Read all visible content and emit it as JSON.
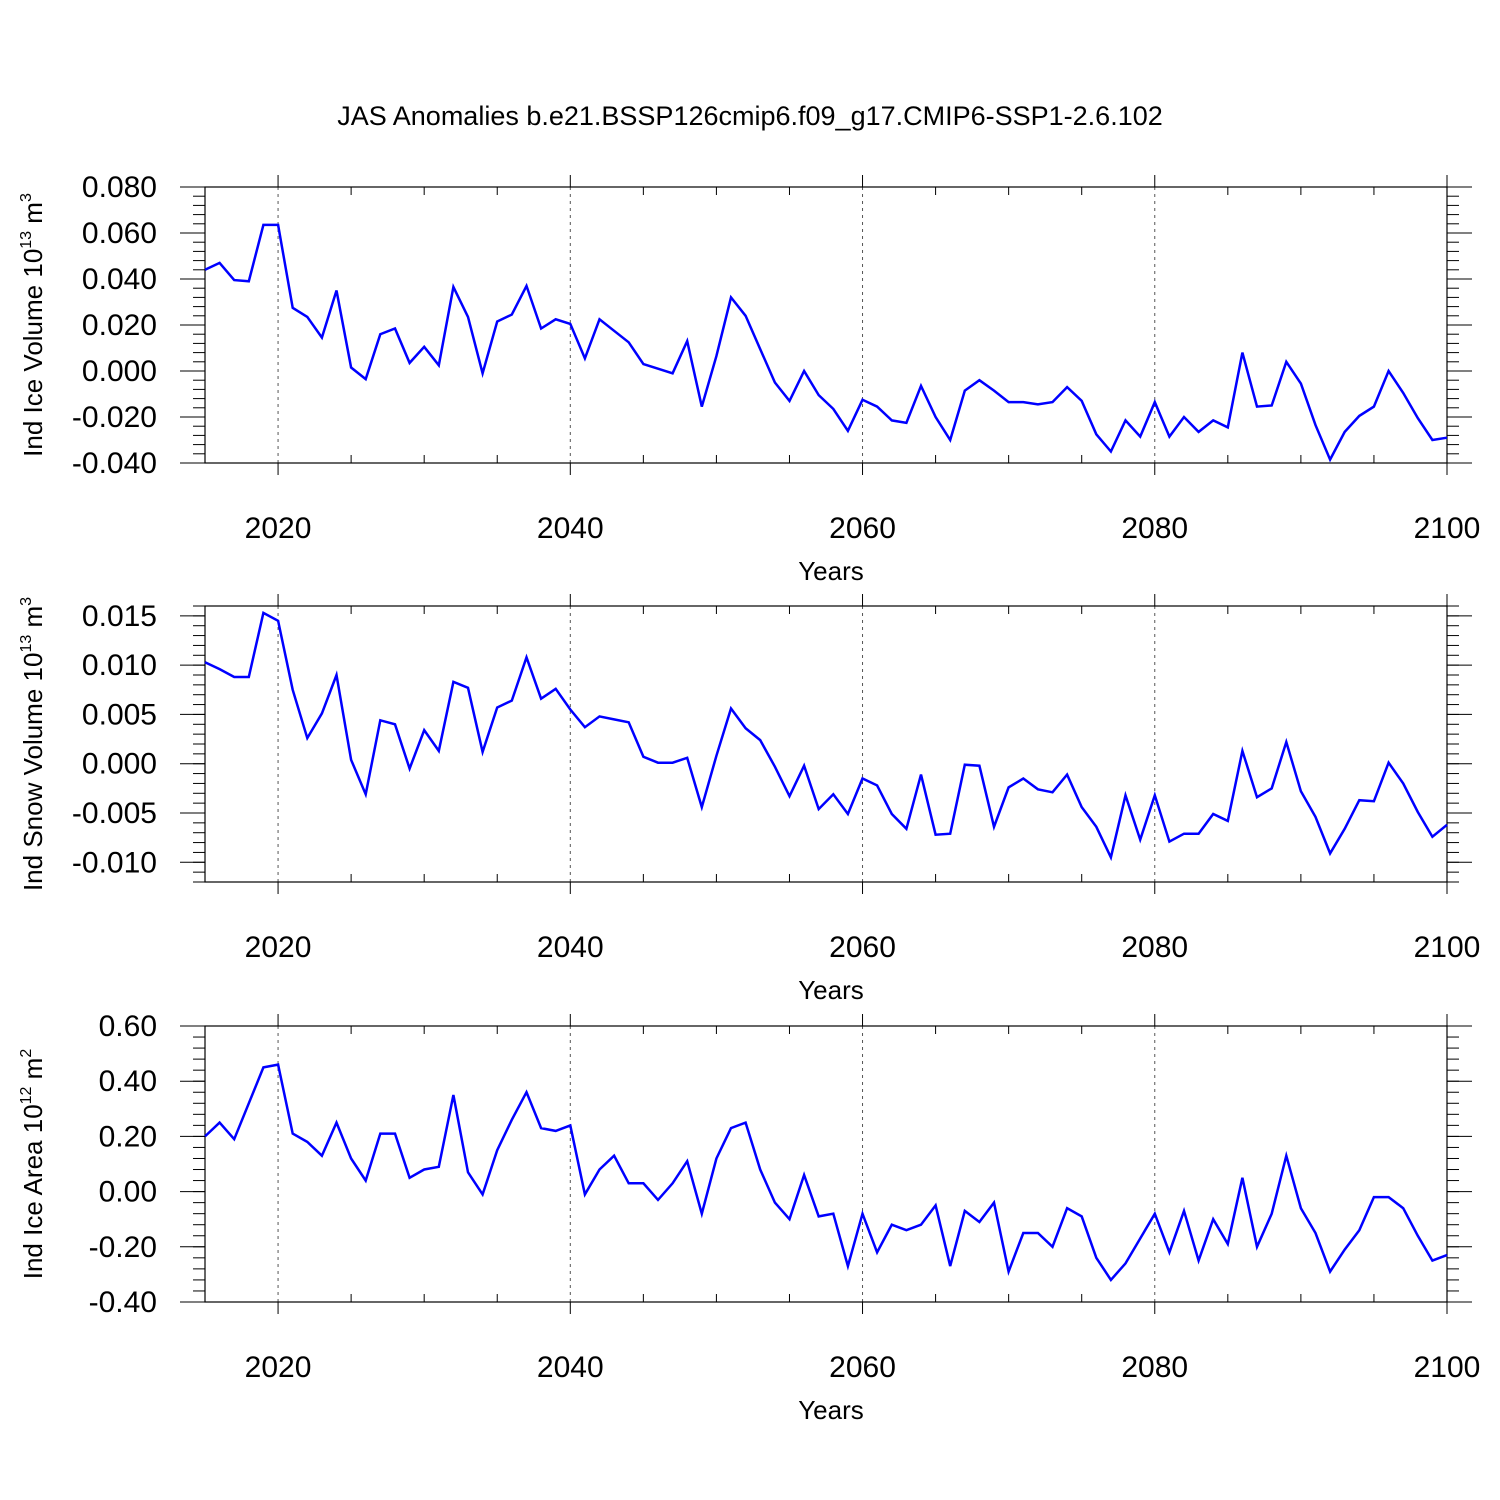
{
  "figure_title": "JAS Anomalies b.e21.BSSP126cmip6.f09_g17.CMIP6-SSP1-2.6.102",
  "colors": {
    "line": "#0000ff",
    "axis": "#000000",
    "grid": "#555555"
  },
  "chart_data": [
    {
      "type": "line",
      "xlabel": "Years",
      "ylabel_parts": {
        "pre": "Ind Ice Volume 10",
        "exp": "13",
        "mid": " m",
        "unit_exp": "3"
      },
      "xlim": [
        2015,
        2100
      ],
      "ylim": [
        -0.04,
        0.08
      ],
      "x_ticks": [
        2020,
        2040,
        2060,
        2080,
        2100
      ],
      "y_ticks": [
        "0.080",
        "0.060",
        "0.040",
        "0.020",
        "0.000",
        "-0.020",
        "-0.040"
      ],
      "y_tick_values": [
        0.08,
        0.06,
        0.04,
        0.02,
        0.0,
        -0.02,
        -0.04
      ],
      "grid": "dashed vertical at 2020, 2040, 2060, 2080",
      "x": [
        2015,
        2016,
        2017,
        2018,
        2019,
        2020,
        2021,
        2022,
        2023,
        2024,
        2025,
        2026,
        2027,
        2028,
        2029,
        2030,
        2031,
        2032,
        2033,
        2034,
        2035,
        2036,
        2037,
        2038,
        2039,
        2040,
        2041,
        2042,
        2043,
        2044,
        2045,
        2046,
        2047,
        2048,
        2049,
        2050,
        2051,
        2052,
        2053,
        2054,
        2055,
        2056,
        2057,
        2058,
        2059,
        2060,
        2061,
        2062,
        2063,
        2064,
        2065,
        2066,
        2067,
        2068,
        2069,
        2070,
        2071,
        2072,
        2073,
        2074,
        2075,
        2076,
        2077,
        2078,
        2079,
        2080,
        2081,
        2082,
        2083,
        2084,
        2085,
        2086,
        2087,
        2088,
        2089,
        2090,
        2091,
        2092,
        2093,
        2094,
        2095,
        2096,
        2097,
        2098,
        2099,
        2100
      ],
      "values": [
        0.044,
        0.047,
        0.0395,
        0.039,
        0.0635,
        0.0635,
        0.0275,
        0.0235,
        0.0145,
        0.035,
        0.0015,
        -0.0035,
        0.016,
        0.0185,
        0.0035,
        0.0105,
        0.0025,
        0.0365,
        0.0235,
        -0.001,
        0.0215,
        0.0245,
        0.037,
        0.0185,
        0.0225,
        0.0205,
        0.0055,
        0.0225,
        0.0175,
        0.0125,
        0.003,
        0.001,
        -0.001,
        0.013,
        -0.0155,
        0.0065,
        0.032,
        0.024,
        0.0095,
        -0.005,
        -0.013,
        0.0,
        -0.0105,
        -0.0165,
        -0.026,
        -0.0125,
        -0.0155,
        -0.0215,
        -0.0225,
        -0.0065,
        -0.02,
        -0.03,
        -0.0085,
        -0.004,
        -0.0085,
        -0.0135,
        -0.0135,
        -0.0145,
        -0.0135,
        -0.007,
        -0.013,
        -0.0275,
        -0.035,
        -0.0215,
        -0.0285,
        -0.0135,
        -0.0285,
        -0.02,
        -0.0265,
        -0.0215,
        -0.0245,
        0.008,
        -0.0155,
        -0.015,
        0.004,
        -0.0055,
        -0.0235,
        -0.0385,
        -0.0265,
        -0.0195,
        -0.0155,
        0.0,
        -0.0095,
        -0.0205,
        -0.03,
        -0.029
      ]
    },
    {
      "type": "line",
      "xlabel": "Years",
      "ylabel_parts": {
        "pre": "Ind Snow Volume 10",
        "exp": "13",
        "mid": " m",
        "unit_exp": "3"
      },
      "xlim": [
        2015,
        2100
      ],
      "ylim": [
        -0.012,
        0.016
      ],
      "x_ticks": [
        2020,
        2040,
        2060,
        2080,
        2100
      ],
      "y_ticks": [
        "0.015",
        "0.010",
        "0.005",
        "0.000",
        "-0.005",
        "-0.010"
      ],
      "y_tick_values": [
        0.015,
        0.01,
        0.005,
        0.0,
        -0.005,
        -0.01
      ],
      "grid": "dashed vertical at 2020, 2040, 2060, 2080",
      "x": [
        2015,
        2016,
        2017,
        2018,
        2019,
        2020,
        2021,
        2022,
        2023,
        2024,
        2025,
        2026,
        2027,
        2028,
        2029,
        2030,
        2031,
        2032,
        2033,
        2034,
        2035,
        2036,
        2037,
        2038,
        2039,
        2040,
        2041,
        2042,
        2043,
        2044,
        2045,
        2046,
        2047,
        2048,
        2049,
        2050,
        2051,
        2052,
        2053,
        2054,
        2055,
        2056,
        2057,
        2058,
        2059,
        2060,
        2061,
        2062,
        2063,
        2064,
        2065,
        2066,
        2067,
        2068,
        2069,
        2070,
        2071,
        2072,
        2073,
        2074,
        2075,
        2076,
        2077,
        2078,
        2079,
        2080,
        2081,
        2082,
        2083,
        2084,
        2085,
        2086,
        2087,
        2088,
        2089,
        2090,
        2091,
        2092,
        2093,
        2094,
        2095,
        2096,
        2097,
        2098,
        2099,
        2100
      ],
      "values": [
        0.0103,
        0.0096,
        0.0088,
        0.0088,
        0.0153,
        0.0145,
        0.0075,
        0.0026,
        0.0051,
        0.009,
        0.0004,
        -0.0031,
        0.0044,
        0.004,
        -0.0005,
        0.0034,
        0.0013,
        0.0083,
        0.0077,
        0.0012,
        0.0057,
        0.0064,
        0.0108,
        0.0066,
        0.0076,
        0.0055,
        0.0037,
        0.0048,
        0.0045,
        0.0042,
        0.0007,
        0.0001,
        0.0001,
        0.0006,
        -0.0044,
        0.0008,
        0.0056,
        0.0036,
        0.0024,
        -0.0003,
        -0.0033,
        -0.0002,
        -0.0046,
        -0.0031,
        -0.0051,
        -0.0015,
        -0.0022,
        -0.0051,
        -0.0066,
        -0.0011,
        -0.0072,
        -0.0071,
        -0.0001,
        -0.0002,
        -0.0064,
        -0.0024,
        -0.0015,
        -0.0026,
        -0.0029,
        -0.0011,
        -0.0044,
        -0.0064,
        -0.0095,
        -0.0032,
        -0.0077,
        -0.0032,
        -0.0079,
        -0.0071,
        -0.0071,
        -0.0051,
        -0.0058,
        0.0013,
        -0.0034,
        -0.0025,
        0.0022,
        -0.0028,
        -0.0054,
        -0.0091,
        -0.0066,
        -0.0037,
        -0.0038,
        0.0001,
        -0.002,
        -0.0049,
        -0.0074,
        -0.0062
      ]
    },
    {
      "type": "line",
      "xlabel": "Years",
      "ylabel_parts": {
        "pre": "Ind Ice Area 10",
        "exp": "12",
        "mid": " m",
        "unit_exp": "2"
      },
      "xlim": [
        2015,
        2100
      ],
      "ylim": [
        -0.4,
        0.6
      ],
      "x_ticks": [
        2020,
        2040,
        2060,
        2080,
        2100
      ],
      "y_ticks": [
        "0.60",
        "0.40",
        "0.20",
        "0.00",
        "-0.20",
        "-0.40"
      ],
      "y_tick_values": [
        0.6,
        0.4,
        0.2,
        0.0,
        -0.2,
        -0.4
      ],
      "grid": "dashed vertical at 2020, 2040, 2060, 2080",
      "x": [
        2015,
        2016,
        2017,
        2018,
        2019,
        2020,
        2021,
        2022,
        2023,
        2024,
        2025,
        2026,
        2027,
        2028,
        2029,
        2030,
        2031,
        2032,
        2033,
        2034,
        2035,
        2036,
        2037,
        2038,
        2039,
        2040,
        2041,
        2042,
        2043,
        2044,
        2045,
        2046,
        2047,
        2048,
        2049,
        2050,
        2051,
        2052,
        2053,
        2054,
        2055,
        2056,
        2057,
        2058,
        2059,
        2060,
        2061,
        2062,
        2063,
        2064,
        2065,
        2066,
        2067,
        2068,
        2069,
        2070,
        2071,
        2072,
        2073,
        2074,
        2075,
        2076,
        2077,
        2078,
        2079,
        2080,
        2081,
        2082,
        2083,
        2084,
        2085,
        2086,
        2087,
        2088,
        2089,
        2090,
        2091,
        2092,
        2093,
        2094,
        2095,
        2096,
        2097,
        2098,
        2099,
        2100
      ],
      "values": [
        0.2,
        0.25,
        0.19,
        0.32,
        0.45,
        0.46,
        0.21,
        0.18,
        0.13,
        0.25,
        0.12,
        0.04,
        0.21,
        0.21,
        0.05,
        0.08,
        0.09,
        0.35,
        0.07,
        -0.01,
        0.15,
        0.26,
        0.36,
        0.23,
        0.22,
        0.24,
        -0.01,
        0.08,
        0.13,
        0.03,
        0.03,
        -0.03,
        0.03,
        0.11,
        -0.08,
        0.12,
        0.23,
        0.25,
        0.08,
        -0.04,
        -0.1,
        0.06,
        -0.09,
        -0.08,
        -0.27,
        -0.08,
        -0.22,
        -0.12,
        -0.14,
        -0.12,
        -0.05,
        -0.27,
        -0.07,
        -0.11,
        -0.04,
        -0.29,
        -0.15,
        -0.15,
        -0.2,
        -0.06,
        -0.09,
        -0.24,
        -0.32,
        -0.26,
        -0.17,
        -0.08,
        -0.22,
        -0.07,
        -0.25,
        -0.1,
        -0.19,
        0.05,
        -0.2,
        -0.08,
        0.13,
        -0.06,
        -0.15,
        -0.29,
        -0.21,
        -0.14,
        -0.02,
        -0.02,
        -0.06,
        -0.16,
        -0.25,
        -0.23
      ]
    }
  ]
}
